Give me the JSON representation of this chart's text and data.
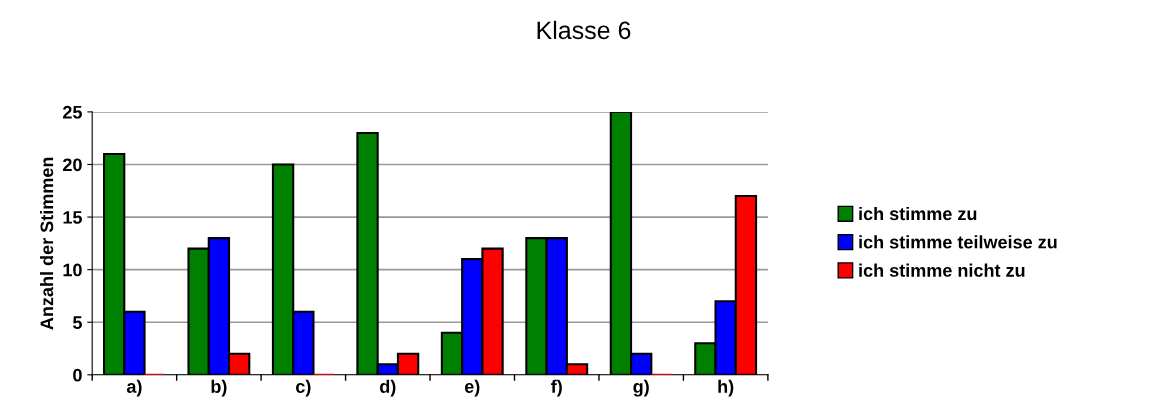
{
  "chart_data": {
    "type": "bar",
    "title": "Klasse 6",
    "ylabel": "Anzahl der Stimmen",
    "categories": [
      "a)",
      "b)",
      "c)",
      "d)",
      "e)",
      "f)",
      "g)",
      "h)"
    ],
    "series": [
      {
        "name": "ich stimme zu",
        "color": "#008000",
        "values": [
          21,
          12,
          20,
          23,
          4,
          13,
          25,
          3
        ]
      },
      {
        "name": "ich stimme teilweise zu",
        "color": "#0000ff",
        "values": [
          6,
          13,
          6,
          1,
          11,
          13,
          2,
          7
        ]
      },
      {
        "name": "ich stimme nicht zu",
        "color": "#ff0000",
        "values": [
          0,
          2,
          0,
          2,
          12,
          1,
          0,
          17
        ]
      }
    ],
    "ylim": [
      0,
      25
    ],
    "yticks": [
      0,
      5,
      10,
      15,
      20,
      25
    ],
    "grid": "y",
    "legend": "right"
  }
}
